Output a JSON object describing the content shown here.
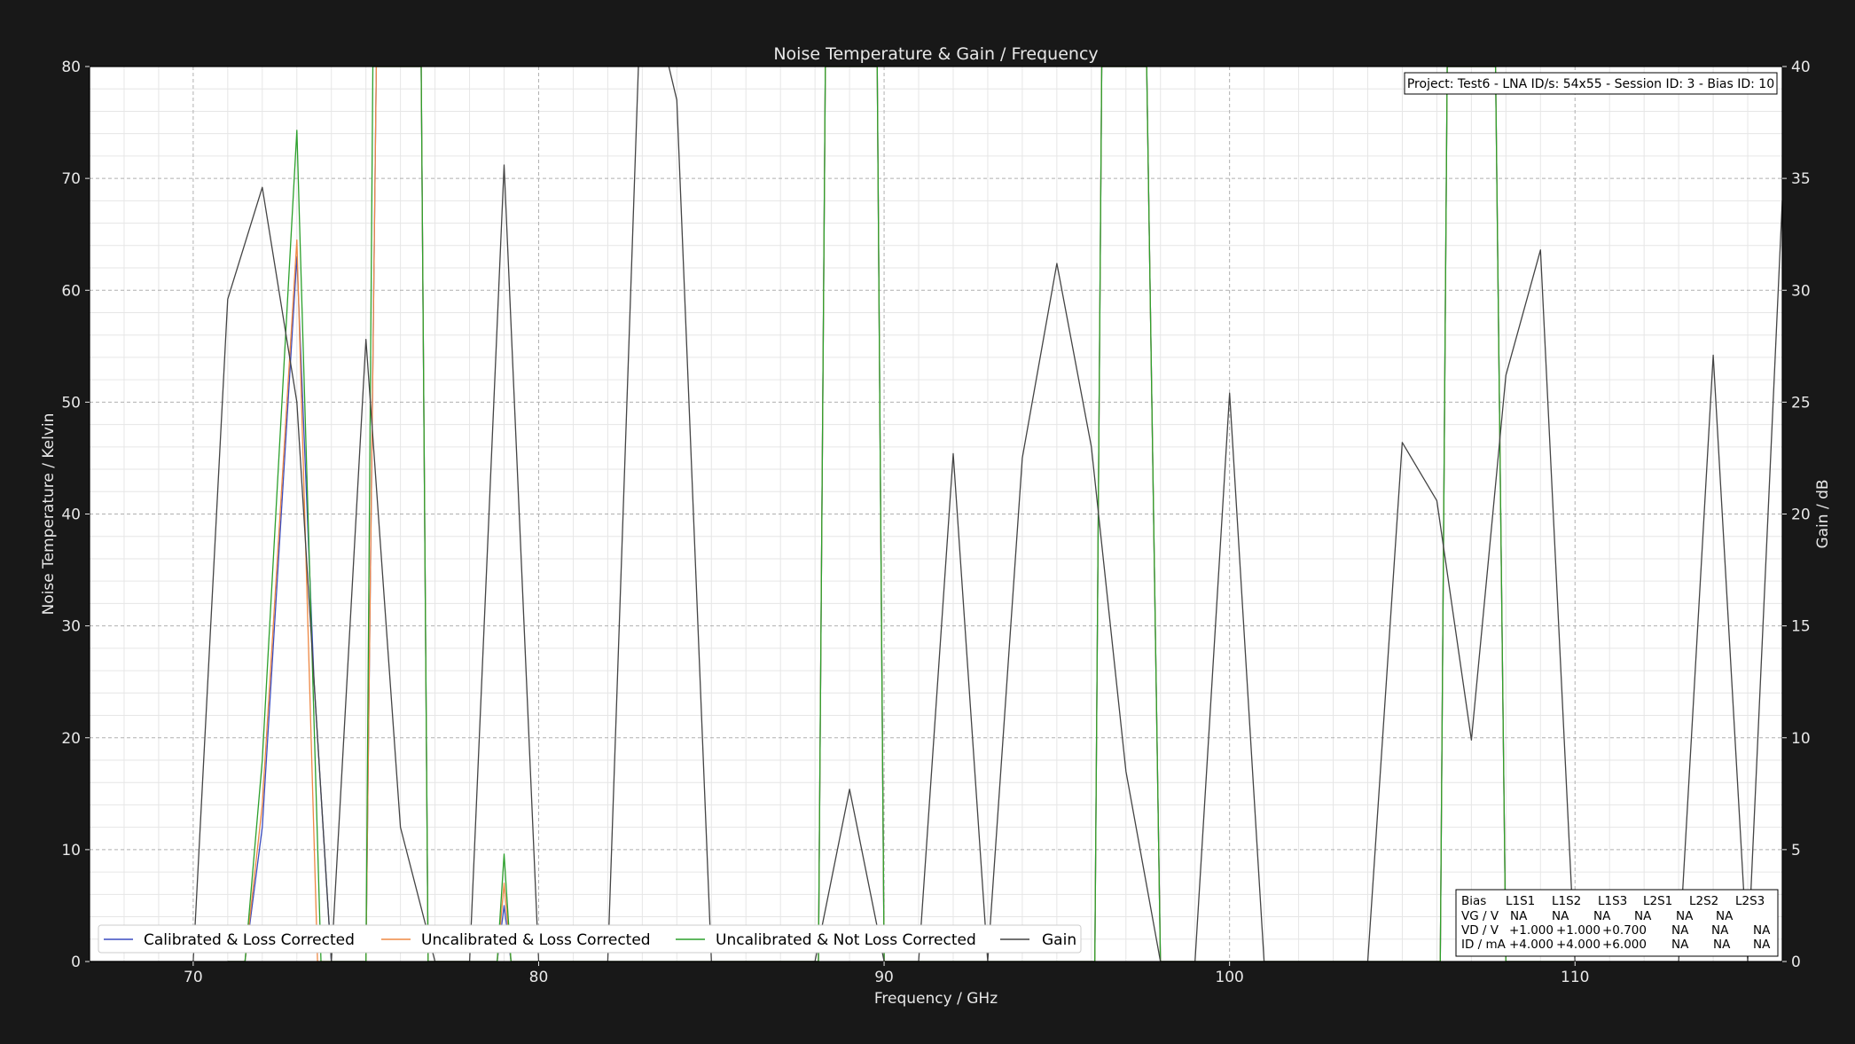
{
  "chart_data": {
    "type": "line",
    "title": "Noise Temperature & Gain / Frequency",
    "xlabel": "Frequency / GHz",
    "ylabel": "Noise Temperature / Kelvin",
    "y2label": "Gain / dB",
    "xlim": [
      67,
      116
    ],
    "ylim": [
      0,
      80
    ],
    "y2lim": [
      0,
      40
    ],
    "xticks": [
      70,
      80,
      90,
      100,
      110
    ],
    "yticks": [
      0,
      10,
      20,
      30,
      40,
      50,
      60,
      70,
      80
    ],
    "y2ticks": [
      0,
      5,
      10,
      15,
      20,
      25,
      30,
      35,
      40
    ],
    "grid": true,
    "legend_position": "bottom-left",
    "series": [
      {
        "name": "Calibrated & Loss Corrected",
        "color": "#3b4cc0",
        "axis": "left",
        "x": [
          71,
          71.5,
          72,
          73,
          73.5,
          74,
          75,
          75.3,
          75.6,
          76,
          76.6,
          76.8,
          77,
          78,
          78.8,
          79,
          79.2,
          80,
          88,
          88.1,
          88.3,
          89.8,
          90,
          96,
          96.1,
          96.3,
          97.6,
          98,
          106,
          106.1,
          106.3,
          107.7,
          108,
          110
        ],
        "y": [
          0,
          0,
          12,
          63,
          25,
          0,
          0,
          80,
          80,
          80,
          80,
          0,
          0,
          0,
          0,
          5,
          0,
          0,
          0,
          0,
          80,
          80,
          0,
          0,
          0,
          80,
          80,
          0,
          0,
          0,
          80,
          80,
          0,
          0
        ]
      },
      {
        "name": "Uncalibrated & Loss Corrected",
        "color": "#ee8844",
        "axis": "left",
        "x": [
          71,
          71.5,
          72,
          73,
          73.6,
          74,
          75,
          75.3,
          75.6,
          76,
          76.6,
          76.8,
          77,
          78,
          78.8,
          79,
          79.2,
          80,
          88,
          88.1,
          88.3,
          89.8,
          90,
          96,
          96.1,
          96.3,
          97.6,
          98,
          106,
          106.1,
          106.3,
          107.7,
          108,
          110
        ],
        "y": [
          0,
          0,
          14,
          64.5,
          0,
          0,
          0,
          80,
          80,
          80,
          80,
          0,
          0,
          0,
          0,
          7,
          0,
          0,
          0,
          0,
          80,
          80,
          0,
          0,
          0,
          80,
          80,
          0,
          0,
          0,
          80,
          80,
          0,
          0
        ]
      },
      {
        "name": "Uncalibrated & Not Loss Corrected",
        "color": "#2ca02c",
        "axis": "left",
        "x": [
          71,
          71.5,
          72,
          73,
          73.7,
          74,
          75,
          75.2,
          75.5,
          76,
          76.6,
          76.8,
          77,
          78,
          78.8,
          79,
          79.2,
          80,
          88,
          88.1,
          88.3,
          89.8,
          90,
          96,
          96.1,
          96.3,
          97.6,
          98,
          106,
          106.1,
          106.3,
          107.7,
          108,
          110
        ],
        "y": [
          0,
          0,
          18,
          74.3,
          0,
          0,
          0,
          80,
          80,
          80,
          80,
          0,
          0,
          0,
          0,
          9.6,
          0,
          0,
          0,
          0,
          80,
          80,
          0,
          0,
          0,
          80,
          80,
          0,
          0,
          0,
          80,
          80,
          0,
          0
        ]
      },
      {
        "name": "Gain",
        "color": "#444444",
        "axis": "right",
        "x": [
          67,
          70,
          71,
          72,
          73,
          74,
          75,
          76,
          77,
          78,
          79,
          80,
          81,
          82,
          83,
          84,
          85,
          86,
          87,
          88,
          89,
          90,
          91,
          92,
          93,
          94,
          95,
          96,
          97,
          98,
          99,
          100,
          101,
          102,
          103,
          104,
          105,
          106,
          107,
          108,
          109,
          110,
          111,
          112,
          113,
          114,
          115,
          116
        ],
        "y": [
          0,
          0,
          29.6,
          34.6,
          25,
          0,
          27.8,
          6,
          0,
          0,
          35.6,
          0,
          0,
          0,
          45,
          38.5,
          0,
          0,
          0,
          0,
          7.7,
          0,
          0,
          22.7,
          0,
          22.5,
          31.2,
          23,
          8.5,
          0,
          0,
          25.4,
          0,
          0,
          0,
          0,
          23.2,
          20.6,
          9.9,
          26.2,
          31.8,
          0,
          0,
          0,
          0,
          27.1,
          0,
          34
        ]
      }
    ],
    "info_box": "Project: Test6 - LNA ID/s: 54x55 - Session ID: 3 - Bias ID: 10",
    "bias_table": {
      "columns": [
        "Bias",
        "L1S1",
        "L1S2",
        "L1S3",
        "L2S1",
        "L2S2",
        "L2S3"
      ],
      "rows": [
        [
          "VG / V",
          "NA",
          "NA",
          "NA",
          "NA",
          "NA",
          "NA"
        ],
        [
          "VD / V",
          "+1.000",
          "+1.000",
          "+0.700",
          "NA",
          "NA",
          "NA"
        ],
        [
          "ID / mA",
          "+4.000",
          "+4.000",
          "+6.000",
          "NA",
          "NA",
          "NA"
        ]
      ]
    }
  },
  "colors": {
    "background": "#181818",
    "plot_background": "#ffffff",
    "text": "#e8e8e8"
  }
}
